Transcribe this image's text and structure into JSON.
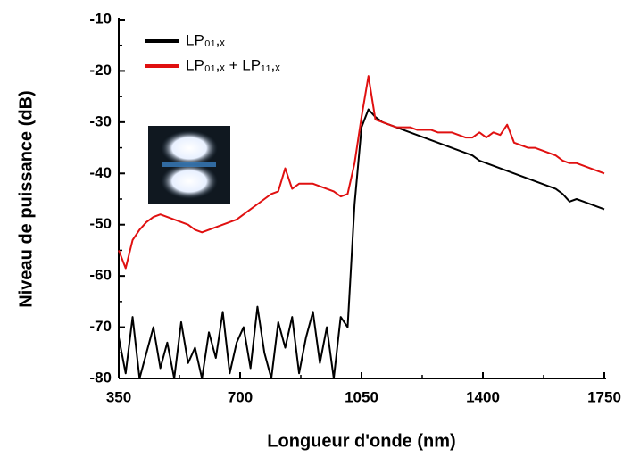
{
  "chart_data": {
    "type": "line",
    "xlabel": "Longueur d'onde (nm)",
    "ylabel": "Niveau de puissance (dB)",
    "x": [
      350,
      370,
      390,
      410,
      430,
      450,
      470,
      490,
      510,
      530,
      550,
      570,
      590,
      610,
      630,
      650,
      670,
      690,
      710,
      730,
      750,
      770,
      790,
      810,
      830,
      850,
      870,
      890,
      910,
      930,
      950,
      970,
      990,
      1010,
      1030,
      1050,
      1070,
      1090,
      1110,
      1130,
      1150,
      1170,
      1190,
      1210,
      1230,
      1250,
      1270,
      1290,
      1310,
      1330,
      1350,
      1370,
      1390,
      1410,
      1430,
      1450,
      1470,
      1490,
      1510,
      1530,
      1550,
      1570,
      1590,
      1610,
      1630,
      1650,
      1670,
      1690,
      1710,
      1730,
      1750
    ],
    "series": [
      {
        "name": "LP₀₁,ₓ",
        "color": "#000000",
        "values": [
          -72,
          -79,
          -68,
          -80,
          -75,
          -70,
          -78,
          -73,
          -80,
          -69,
          -77,
          -74,
          -80,
          -71,
          -76,
          -67,
          -79,
          -73,
          -70,
          -78,
          -66,
          -75,
          -80,
          -69,
          -74,
          -68,
          -79,
          -72,
          -67,
          -77,
          -70,
          -80,
          -68,
          -70,
          -46,
          -31,
          -27.5,
          -29,
          -30,
          -30.5,
          -31,
          -31.5,
          -32,
          -32.5,
          -33,
          -33.5,
          -34,
          -34.5,
          -35,
          -35.5,
          -36,
          -36.5,
          -37.5,
          -38,
          -38.5,
          -39,
          -39.5,
          -40,
          -40.5,
          -41,
          -41.5,
          -42,
          -42.5,
          -43,
          -44,
          -45.5,
          -45,
          -45.5,
          -46,
          -46.5,
          -47
        ]
      },
      {
        "name": "LP₀₁,ₓ + LP₁₁,ₓ",
        "color": "#e01010",
        "values": [
          -55,
          -58.5,
          -53,
          -51,
          -49.5,
          -48.5,
          -48,
          -48.5,
          -49,
          -49.5,
          -50,
          -51,
          -51.5,
          -51,
          -50.5,
          -50,
          -49.5,
          -49,
          -48,
          -47,
          -46,
          -45,
          -44,
          -43.5,
          -39,
          -43,
          -42,
          -42,
          -42,
          -42.5,
          -43,
          -43.5,
          -44.5,
          -44,
          -38,
          -29,
          -21,
          -29.5,
          -30,
          -30.5,
          -31,
          -31,
          -31,
          -31.5,
          -31.5,
          -31.5,
          -32,
          -32,
          -32,
          -32.5,
          -33,
          -33,
          -32,
          -33,
          -32,
          -32.5,
          -30.5,
          -34,
          -34.5,
          -35,
          -35,
          -35.5,
          -36,
          -36.5,
          -37.5,
          -38,
          -38,
          -38.5,
          -39,
          -39.5,
          -40
        ]
      }
    ],
    "xlim": [
      350,
      1750
    ],
    "xticks": [
      350,
      700,
      1050,
      1400,
      1750
    ],
    "ylim": [
      -80,
      -10
    ],
    "yticks": [
      -80,
      -70,
      -60,
      -50,
      -40,
      -30,
      -20,
      -10
    ],
    "grid": false,
    "legend": "upper left"
  }
}
